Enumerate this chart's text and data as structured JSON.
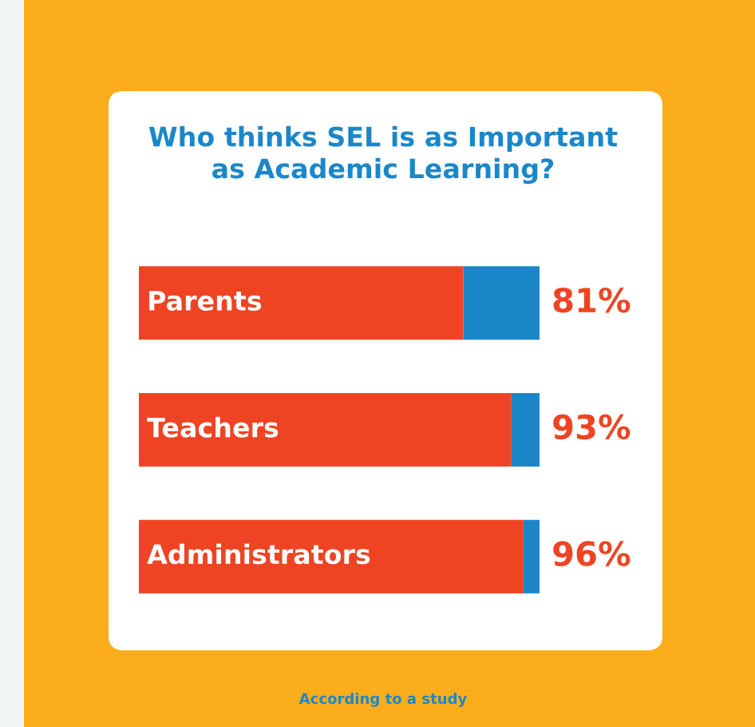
{
  "chart_data": {
    "type": "bar",
    "orientation": "horizontal",
    "stacked": true,
    "title": "Who thinks SEL is as Important\nas Academic Learning?",
    "annotations": [
      "According to a study"
    ],
    "categories": [
      "Parents",
      "Teachers",
      "Administrators"
    ],
    "xlim": [
      0,
      100
    ],
    "series": [
      {
        "color": "#ee4423",
        "values": [
          81,
          93,
          96
        ],
        "value_labels": [
          "81%",
          "93%",
          "96%"
        ]
      },
      {
        "color": "#1b87c9",
        "values": [
          19,
          7,
          4
        ]
      }
    ]
  }
}
